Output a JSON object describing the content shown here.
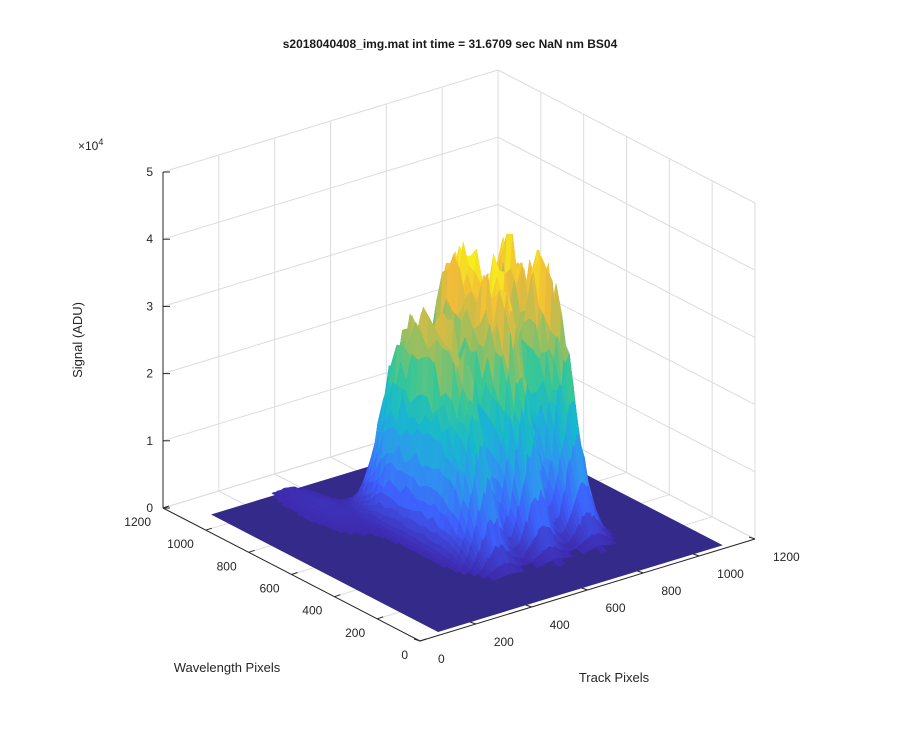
{
  "chart_data": {
    "type": "surface",
    "title": "s2018040408_img.mat int time = 31.6709 sec  NaN nm BS04",
    "xlabel": "Track Pixels",
    "ylabel": "Wavelength Pixels",
    "zlabel": "Signal (ADU)",
    "z_multiplier": "×10",
    "z_exponent": "4",
    "xlim": [
      0,
      1200
    ],
    "ylim": [
      0,
      1200
    ],
    "zlim": [
      0,
      50000
    ],
    "x_ticks": [
      "0",
      "200",
      "400",
      "600",
      "800",
      "1000",
      "1200"
    ],
    "y_ticks": [
      "0",
      "200",
      "400",
      "600",
      "800",
      "1000",
      "1200"
    ],
    "z_ticks": [
      "0",
      "1",
      "2",
      "3",
      "4",
      "5"
    ],
    "grid": true,
    "colormap": [
      "#3e26a8",
      "#3e5ffc",
      "#2f95f0",
      "#17b8ce",
      "#38c795",
      "#a4be5a",
      "#f1bb38",
      "#f9fb15"
    ],
    "floor_color": "#332a8a",
    "peaks": [
      {
        "track_center": 480,
        "wavelength_center": 560,
        "peak_signal": 31000
      },
      {
        "track_center": 640,
        "wavelength_center": 560,
        "peak_signal": 39000
      },
      {
        "track_center": 800,
        "wavelength_center": 560,
        "peak_signal": 37000
      }
    ]
  }
}
